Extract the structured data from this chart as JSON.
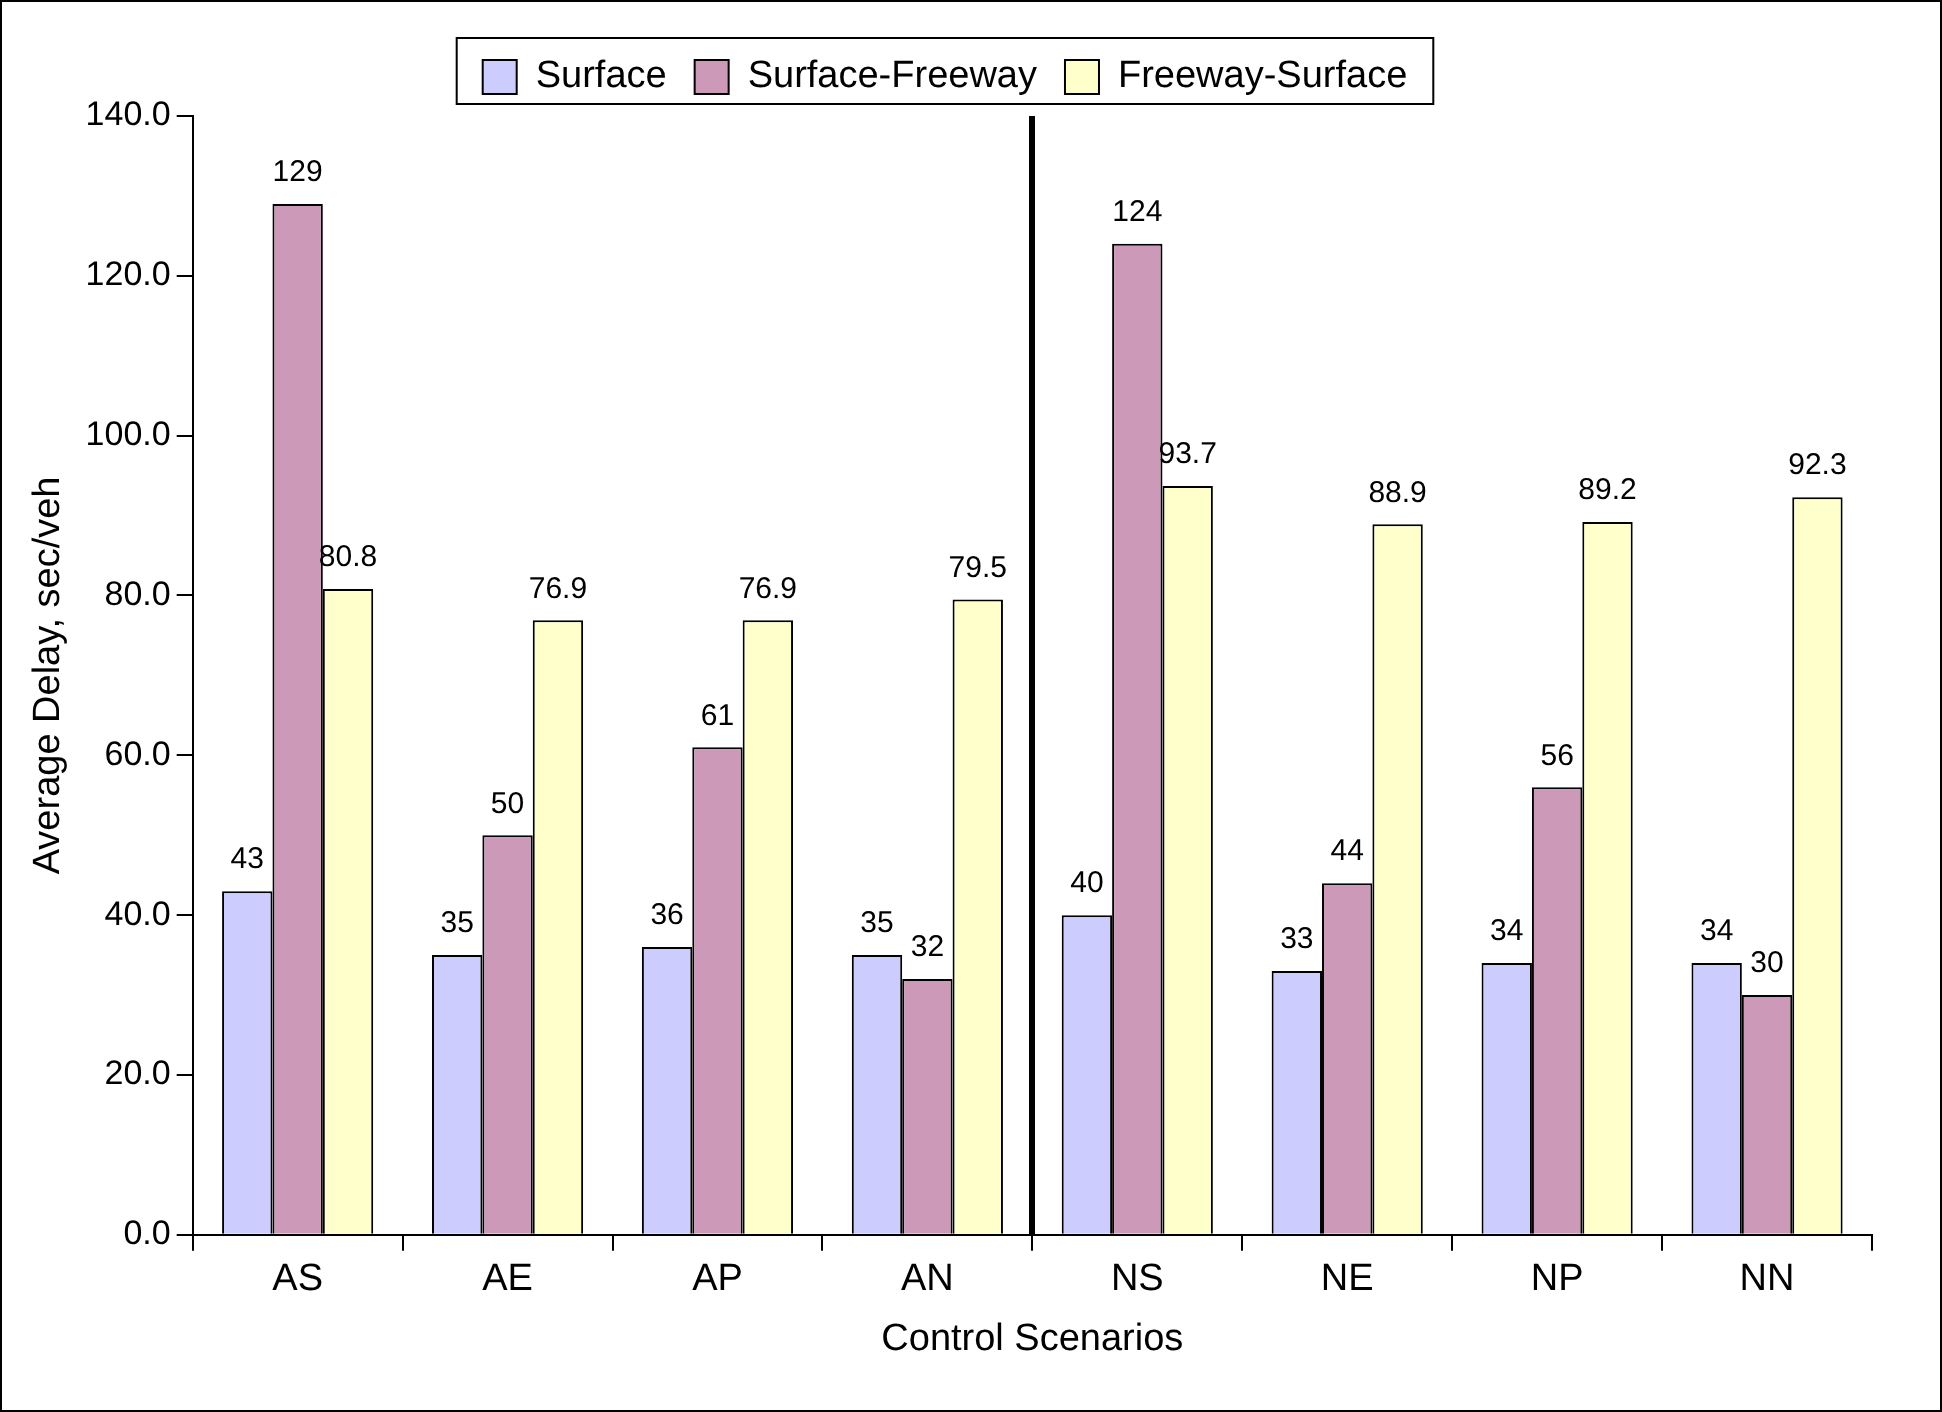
{
  "chart_data": {
    "type": "bar",
    "xlabel": "Control Scenarios",
    "ylabel": "Average Delay, sec/veh",
    "categories": [
      "AS",
      "AE",
      "AP",
      "AN",
      "NS",
      "NE",
      "NP",
      "NN"
    ],
    "series": [
      {
        "name": "Surface",
        "color": "#ccccff",
        "values": [
          43,
          35,
          36,
          35,
          40,
          33,
          34,
          34
        ]
      },
      {
        "name": "Surface-Freeway",
        "color": "#cc99b8",
        "values": [
          129,
          50,
          61,
          32,
          124,
          44,
          56,
          30
        ]
      },
      {
        "name": "Freeway-Surface",
        "color": "#ffffcc",
        "values": [
          80.8,
          76.9,
          76.9,
          79.5,
          93.7,
          88.9,
          89.2,
          92.3
        ]
      }
    ],
    "ylim": [
      0,
      140
    ],
    "yticks": [
      {
        "value": 0,
        "label": "0.0"
      },
      {
        "value": 20,
        "label": "20.0"
      },
      {
        "value": 40,
        "label": "40.0"
      },
      {
        "value": 60,
        "label": "60.0"
      },
      {
        "value": 80,
        "label": "80.0"
      },
      {
        "value": 100,
        "label": "100.0"
      },
      {
        "value": 120,
        "label": "120.0"
      },
      {
        "value": 140,
        "label": "140.0"
      }
    ],
    "data_labels": true,
    "grid": false,
    "legend": "top"
  }
}
